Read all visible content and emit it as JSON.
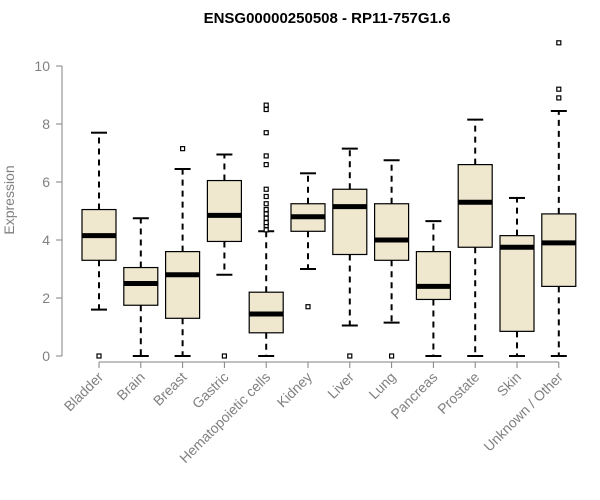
{
  "chart_data": {
    "type": "boxplot",
    "title": "ENSG00000250508 - RP11-757G1.6",
    "ylabel": "Expression",
    "xlabel": "",
    "ylim": [
      0,
      10
    ],
    "yticks": [
      0,
      2,
      4,
      6,
      8,
      10
    ],
    "box_fill": "#efe8cf",
    "box_stroke": "#000000",
    "axis_color": "#808080",
    "categories": [
      "Bladder",
      "Brain",
      "Breast",
      "Gastric",
      "Hematopoietic cells",
      "Kidney",
      "Liver",
      "Lung",
      "Pancreas",
      "Prostate",
      "Skin",
      "Unknown / Other"
    ],
    "boxes": [
      {
        "whisker_low": 1.6,
        "q1": 3.3,
        "median": 4.15,
        "q3": 5.05,
        "whisker_high": 7.7,
        "outliers": [
          0
        ]
      },
      {
        "whisker_low": 0,
        "q1": 1.75,
        "median": 2.5,
        "q3": 3.05,
        "whisker_high": 4.75,
        "outliers": []
      },
      {
        "whisker_low": 0,
        "q1": 1.3,
        "median": 2.8,
        "q3": 3.6,
        "whisker_high": 6.45,
        "outliers": [
          7.15
        ]
      },
      {
        "whisker_low": 2.8,
        "q1": 3.95,
        "median": 4.85,
        "q3": 6.05,
        "whisker_high": 6.95,
        "outliers": [
          0
        ]
      },
      {
        "whisker_low": 0,
        "q1": 0.8,
        "median": 1.45,
        "q3": 2.2,
        "whisker_high": 4.3,
        "outliers": [
          4.35,
          4.5,
          4.6,
          4.75,
          4.9,
          5.05,
          5.25,
          5.5,
          5.75,
          6.6,
          6.9,
          7.7,
          8.5,
          8.65
        ]
      },
      {
        "whisker_low": 3.0,
        "q1": 4.3,
        "median": 4.8,
        "q3": 5.25,
        "whisker_high": 6.3,
        "outliers": [
          1.7
        ]
      },
      {
        "whisker_low": 1.05,
        "q1": 3.5,
        "median": 5.15,
        "q3": 5.75,
        "whisker_high": 7.15,
        "outliers": [
          0
        ]
      },
      {
        "whisker_low": 1.15,
        "q1": 3.3,
        "median": 4.0,
        "q3": 5.25,
        "whisker_high": 6.75,
        "outliers": [
          0
        ]
      },
      {
        "whisker_low": 0,
        "q1": 1.95,
        "median": 2.4,
        "q3": 3.6,
        "whisker_high": 4.65,
        "outliers": []
      },
      {
        "whisker_low": 0,
        "q1": 3.75,
        "median": 5.3,
        "q3": 6.6,
        "whisker_high": 8.15,
        "outliers": []
      },
      {
        "whisker_low": 0,
        "q1": 0.85,
        "median": 3.75,
        "q3": 4.15,
        "whisker_high": 5.45,
        "outliers": []
      },
      {
        "whisker_low": 0,
        "q1": 2.4,
        "median": 3.9,
        "q3": 4.9,
        "whisker_high": 8.45,
        "outliers": [
          8.9,
          9.2,
          10.8
        ]
      }
    ]
  }
}
